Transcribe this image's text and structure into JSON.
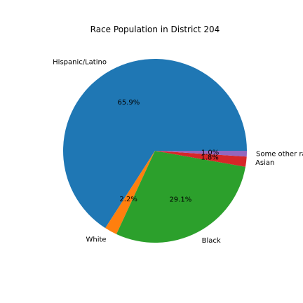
{
  "chart_data": {
    "type": "pie",
    "title": "Race Population in District 204",
    "slices": [
      {
        "label": "Hispanic/Latino",
        "value": 65.9,
        "pct_label": "65.9%",
        "color": "#1f77b4"
      },
      {
        "label": "White",
        "value": 2.2,
        "pct_label": "2.2%",
        "color": "#ff7f0e"
      },
      {
        "label": "Black",
        "value": 29.1,
        "pct_label": "29.1%",
        "color": "#2ca02c"
      },
      {
        "label": "Asian",
        "value": 1.8,
        "pct_label": "1.8%",
        "color": "#d62728"
      },
      {
        "label": "Some other race",
        "value": 1.0,
        "pct_label": "1.0%",
        "color": "#9467bd"
      }
    ],
    "start_angle_deg": 0,
    "direction": "counterclockwise",
    "legend": "none"
  }
}
